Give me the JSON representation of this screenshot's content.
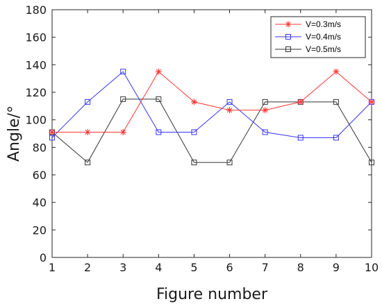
{
  "chart_data": {
    "type": "line",
    "title": "",
    "xlabel": "Figure number",
    "ylabel": "Angle/°",
    "xlim": [
      1,
      10
    ],
    "ylim": [
      0,
      180
    ],
    "xticks": [
      1,
      2,
      3,
      4,
      5,
      6,
      7,
      8,
      9,
      10
    ],
    "yticks": [
      0,
      20,
      40,
      60,
      80,
      100,
      120,
      140,
      160,
      180
    ],
    "grid": false,
    "legend_position": "top-right",
    "x": [
      1,
      2,
      3,
      4,
      5,
      6,
      7,
      8,
      9,
      10
    ],
    "series": [
      {
        "name": "V=0.3m/s",
        "color": "#ff3333",
        "marker": "asterisk",
        "values": [
          91,
          91,
          91,
          135,
          113,
          107,
          107,
          113,
          135,
          113
        ]
      },
      {
        "name": "V=0.4m/s",
        "color": "#3333ff",
        "marker": "square",
        "values": [
          87,
          113,
          135,
          91,
          91,
          113,
          91,
          87,
          87,
          113
        ]
      },
      {
        "name": "V=0.5m/s",
        "color": "#333333",
        "marker": "square",
        "values": [
          91,
          69,
          115,
          115,
          69,
          69,
          113,
          113,
          113,
          69
        ]
      }
    ]
  }
}
